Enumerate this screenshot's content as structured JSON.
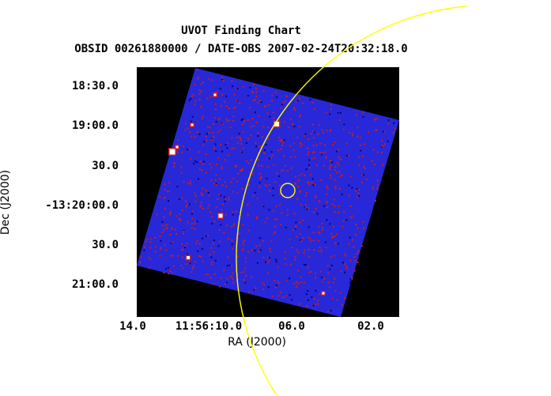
{
  "chart_data": {
    "type": "image",
    "title": "UVOT Finding Chart",
    "subtitle": "OBSID 00261880000 / DATE-OBS 2007-02-24T20:32:18.0",
    "xlabel": "RA (J2000)",
    "ylabel": "Dec (J2000)",
    "x_ticks": [
      "14.0",
      "11:56:10.0",
      "06.0",
      "02.0"
    ],
    "y_ticks": [
      "18:30.0",
      "19:00.0",
      "30.0",
      "-13:20:00.0",
      "30.0",
      "21:00.0"
    ],
    "background": "#000000",
    "image_color": "#2828d8",
    "noise_color": "#c81e1e",
    "source_color": "#ffffff",
    "circle_color": "#ffff00",
    "overlays": [
      {
        "kind": "large error circle",
        "color": "#ffff00"
      },
      {
        "kind": "small source circle",
        "color": "#ffff00"
      }
    ]
  }
}
